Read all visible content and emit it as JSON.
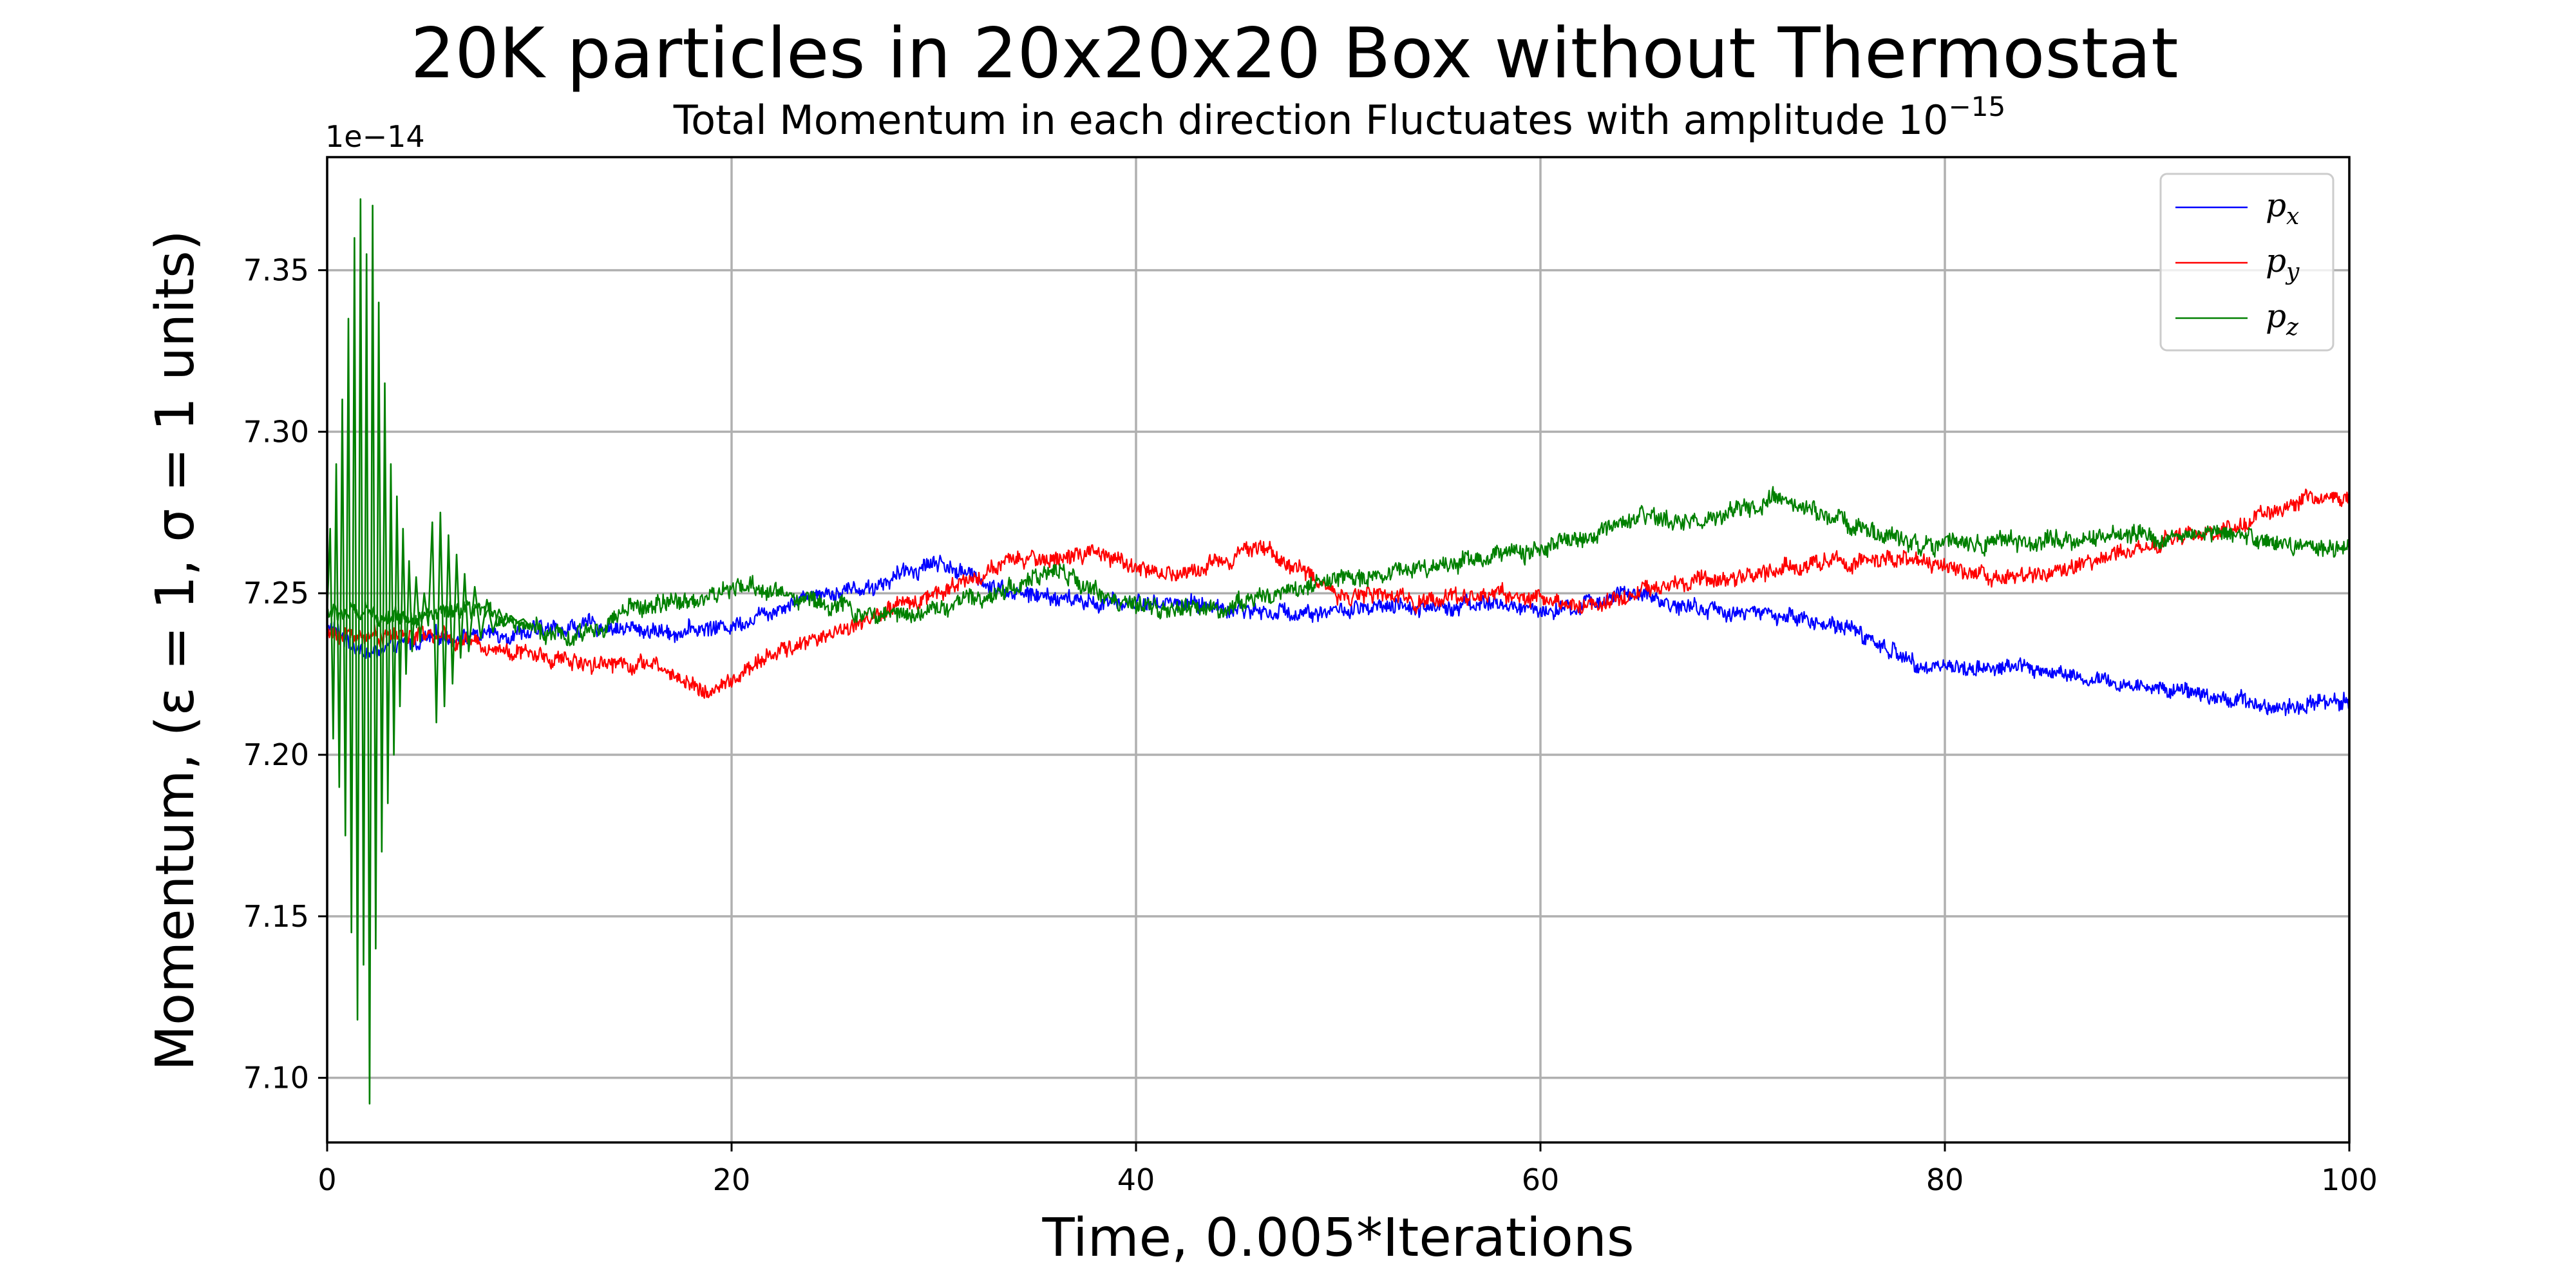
{
  "chart_data": {
    "type": "line",
    "title": "20K particles in 20x20x20 Box without Thermostat",
    "subtitle_text": "Total Momentum in each direction Fluctuates with amplitude 10",
    "subtitle_exponent": "−15",
    "xlabel": "Time, 0.005*Iterations",
    "ylabel": "Momentum, (ε = 1, σ = 1 units)",
    "offset_label": "1e−14",
    "xlim": [
      0,
      100
    ],
    "ylim": [
      7.08,
      7.385
    ],
    "grid": true,
    "legend_position": "top-right",
    "x_ticks": [
      {
        "value": 0,
        "label": "0"
      },
      {
        "value": 20,
        "label": "20"
      },
      {
        "value": 40,
        "label": "40"
      },
      {
        "value": 60,
        "label": "60"
      },
      {
        "value": 80,
        "label": "80"
      },
      {
        "value": 100,
        "label": "100"
      }
    ],
    "y_ticks": [
      {
        "value": 7.1,
        "label": "7.10"
      },
      {
        "value": 7.15,
        "label": "7.15"
      },
      {
        "value": 7.2,
        "label": "7.20"
      },
      {
        "value": 7.25,
        "label": "7.25"
      },
      {
        "value": 7.3,
        "label": "7.30"
      },
      {
        "value": 7.35,
        "label": "7.35"
      }
    ],
    "series": [
      {
        "name": "p_x",
        "legend_base": "p",
        "legend_sub": "x",
        "color": "#0000ff",
        "noise": 0.0025,
        "x": [
          0,
          2,
          5,
          10,
          13,
          17,
          20,
          24,
          27,
          30,
          34,
          38,
          42,
          47,
          52,
          57,
          61,
          64,
          68,
          72,
          75,
          78,
          80,
          84,
          88,
          92,
          96,
          100
        ],
        "y": [
          7.24,
          7.231,
          7.236,
          7.238,
          7.24,
          7.238,
          7.24,
          7.25,
          7.252,
          7.26,
          7.25,
          7.247,
          7.247,
          7.244,
          7.245,
          7.247,
          7.244,
          7.25,
          7.245,
          7.243,
          7.24,
          7.23,
          7.227,
          7.227,
          7.222,
          7.22,
          7.215,
          7.217
        ]
      },
      {
        "name": "p_y",
        "legend_base": "p",
        "legend_sub": "y",
        "color": "#ff0000",
        "noise": 0.0025,
        "x": [
          0,
          5,
          10,
          12,
          16,
          19,
          22,
          26,
          30,
          34,
          38,
          42,
          46,
          50,
          54,
          58,
          62,
          66,
          70,
          74,
          78,
          82,
          85,
          90,
          95,
          98,
          100
        ],
        "y": [
          7.237,
          7.237,
          7.231,
          7.229,
          7.228,
          7.219,
          7.231,
          7.24,
          7.25,
          7.26,
          7.262,
          7.255,
          7.265,
          7.25,
          7.248,
          7.25,
          7.246,
          7.252,
          7.255,
          7.26,
          7.26,
          7.256,
          7.255,
          7.265,
          7.272,
          7.28,
          7.279
        ]
      },
      {
        "name": "p_z",
        "legend_base": "p",
        "legend_sub": "z",
        "color": "#008000",
        "noise": 0.0028,
        "x": [
          0,
          4,
          8,
          10,
          12,
          15,
          18,
          21,
          24,
          27,
          30,
          33,
          36,
          40,
          44,
          48,
          52,
          56,
          60,
          63,
          65,
          68,
          72,
          75,
          78,
          82,
          86,
          90,
          94,
          97,
          100
        ],
        "y": [
          7.244,
          7.243,
          7.244,
          7.24,
          7.235,
          7.245,
          7.248,
          7.252,
          7.248,
          7.243,
          7.245,
          7.25,
          7.257,
          7.245,
          7.245,
          7.252,
          7.256,
          7.26,
          7.264,
          7.268,
          7.273,
          7.272,
          7.279,
          7.272,
          7.266,
          7.266,
          7.266,
          7.268,
          7.268,
          7.265,
          7.264
        ]
      },
      {
        "name": "p_z initial oscillation",
        "color": "#008000",
        "x": [
          0,
          0.15,
          0.3,
          0.45,
          0.6,
          0.75,
          0.9,
          1.05,
          1.2,
          1.35,
          1.5,
          1.65,
          1.8,
          1.95,
          2.1,
          2.25,
          2.4,
          2.55,
          2.7,
          2.85,
          3.0,
          3.15,
          3.3,
          3.45,
          3.6,
          3.75,
          3.9,
          4.05,
          4.2,
          4.4,
          4.6,
          4.8,
          5.0,
          5.2,
          5.4,
          5.6,
          5.8,
          6.0,
          6.2,
          6.4,
          6.6,
          6.8,
          7.0,
          7.3,
          7.6,
          7.9,
          8.2,
          8.5,
          8.8,
          9.1,
          9.4,
          9.7,
          10
        ],
        "y": [
          7.244,
          7.27,
          7.205,
          7.29,
          7.19,
          7.31,
          7.175,
          7.335,
          7.145,
          7.36,
          7.118,
          7.372,
          7.135,
          7.355,
          7.092,
          7.37,
          7.14,
          7.34,
          7.17,
          7.315,
          7.185,
          7.29,
          7.2,
          7.28,
          7.215,
          7.27,
          7.225,
          7.26,
          7.232,
          7.255,
          7.235,
          7.25,
          7.24,
          7.272,
          7.21,
          7.275,
          7.215,
          7.268,
          7.222,
          7.262,
          7.23,
          7.256,
          7.232,
          7.252,
          7.236,
          7.248,
          7.238,
          7.245,
          7.24,
          7.243,
          7.241,
          7.242,
          7.24
        ]
      }
    ]
  }
}
